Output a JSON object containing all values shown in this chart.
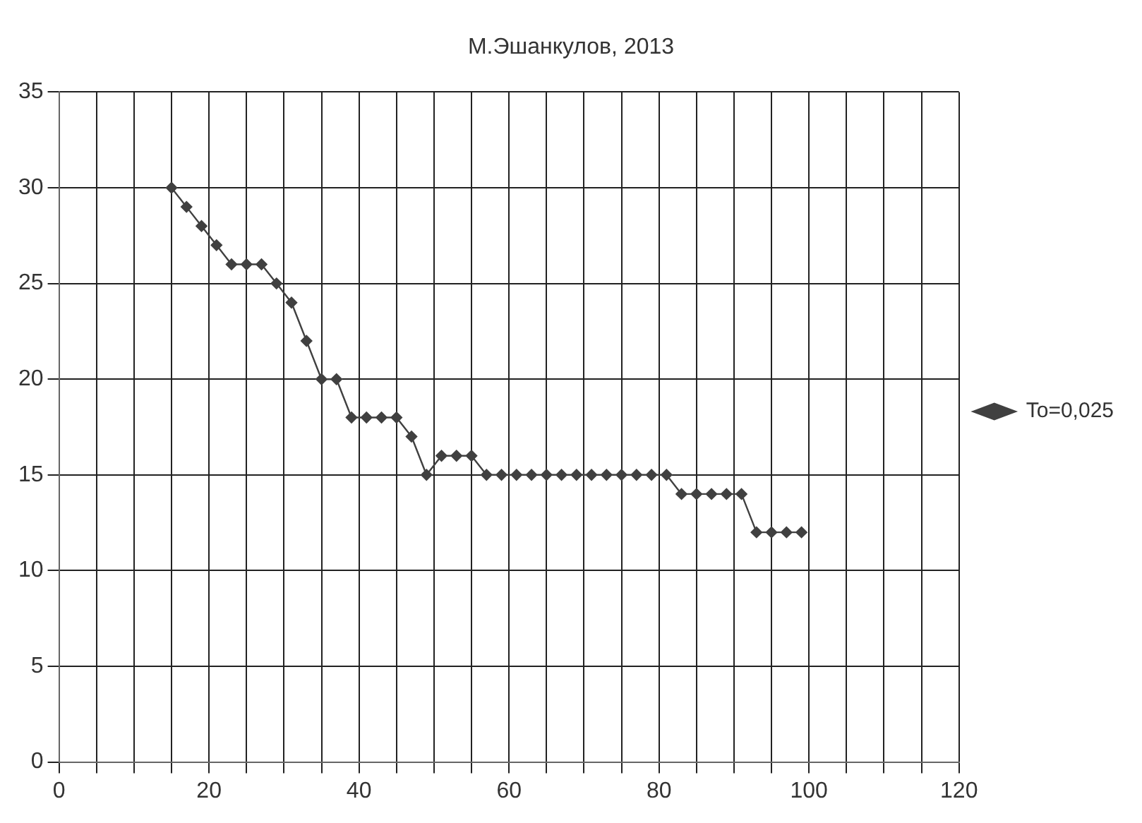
{
  "chart_data": {
    "type": "line",
    "title": "М.Эшанкулов, 2013",
    "x": [
      15,
      17,
      19,
      21,
      23,
      25,
      27,
      29,
      31,
      33,
      35,
      37,
      39,
      41,
      43,
      45,
      47,
      49,
      51,
      53,
      55,
      57,
      59,
      61,
      63,
      65,
      67,
      69,
      71,
      73,
      75,
      77,
      79,
      81,
      83,
      85,
      87,
      89,
      91,
      93,
      95,
      97,
      99
    ],
    "series": [
      {
        "name": "To=0,025",
        "color": "#404040",
        "values": [
          30,
          29,
          28,
          27,
          26,
          26,
          26,
          25,
          24,
          22,
          20,
          20,
          18,
          18,
          18,
          18,
          17,
          15,
          16,
          16,
          16,
          15,
          15,
          15,
          15,
          15,
          15,
          15,
          15,
          15,
          15,
          15,
          15,
          15,
          14,
          14,
          14,
          14,
          14,
          12,
          12,
          12,
          12
        ]
      }
    ],
    "xlim": [
      0,
      120
    ],
    "xticks": [
      0,
      {
        "value": 5,
        "label": null
      },
      {
        "value": 10,
        "label": null
      },
      {
        "value": 15,
        "label": null
      },
      20,
      {
        "value": 25,
        "label": null
      },
      {
        "value": 30,
        "label": null
      },
      {
        "value": 35,
        "label": null
      },
      40,
      {
        "value": 45,
        "label": null
      },
      {
        "value": 50,
        "label": null
      },
      {
        "value": 55,
        "label": null
      },
      60,
      {
        "value": 65,
        "label": null
      },
      {
        "value": 70,
        "label": null
      },
      {
        "value": 75,
        "label": null
      },
      80,
      {
        "value": 85,
        "label": null
      },
      {
        "value": 90,
        "label": null
      },
      {
        "value": 95,
        "label": null
      },
      100,
      {
        "value": 105,
        "label": null
      },
      {
        "value": 110,
        "label": null
      },
      {
        "value": 115,
        "label": null
      },
      120
    ],
    "ylim": [
      0,
      35
    ],
    "yticks": [
      0,
      5,
      10,
      15,
      20,
      25,
      30,
      35
    ],
    "grid": true,
    "legend": "right",
    "marker": "diamond",
    "line_style": "solid"
  }
}
